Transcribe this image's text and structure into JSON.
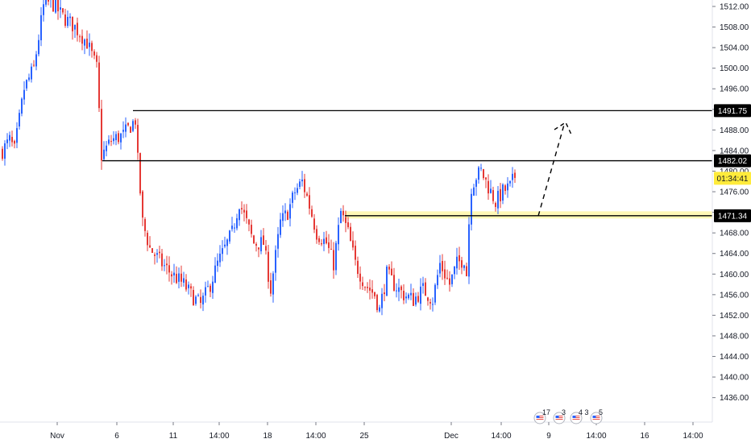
{
  "chart_data": {
    "type": "candlestick",
    "ylim": [
      1432,
      1514
    ],
    "y_ticks": [
      "1512.00",
      "1508.00",
      "1504.00",
      "1500.00",
      "1496.00",
      "1492.00",
      "1488.00",
      "1484.00",
      "1480.00",
      "1476.00",
      "1472.00",
      "1468.00",
      "1464.00",
      "1460.00",
      "1456.00",
      "1452.00",
      "1448.00",
      "1444.00",
      "1440.00",
      "1436.00"
    ],
    "x_ticks": [
      "Nov",
      "6",
      "11",
      "14:00",
      "18",
      "14:00",
      "25",
      "Dec",
      "14:00",
      "9",
      "14:00",
      "16",
      "14:00"
    ],
    "colors": {
      "up": "#2962ff",
      "down": "#e53935",
      "level": "#000000",
      "zone": "#fff59d",
      "current": "#ffeb3b"
    },
    "levels": [
      {
        "price": 1491.75,
        "label": "1491.75"
      },
      {
        "price": 1482.02,
        "label": "1482.02"
      },
      {
        "price": 1471.34,
        "label": "1471.34"
      }
    ],
    "zone": {
      "from": 1470.8,
      "to": 1472.2
    },
    "current_price": {
      "price": 1478.6,
      "label": "01:34:41"
    },
    "projection": {
      "from_price": 1471.3,
      "to_price": 1489.0,
      "style": "dashed"
    },
    "events": [
      {
        "icon": "us-flag-icon",
        "count": "17"
      },
      {
        "icon": "us-flag-icon",
        "count": "3"
      },
      {
        "icon": "us-flag-icon",
        "count": "4 3"
      },
      {
        "icon": "us-flag-icon",
        "count": "5"
      }
    ],
    "anchors": [
      [
        0,
        1484
      ],
      [
        3,
        1486
      ],
      [
        5,
        1484
      ],
      [
        9,
        1496
      ],
      [
        13,
        1500
      ],
      [
        17,
        1512
      ],
      [
        20,
        1513
      ],
      [
        25,
        1510
      ],
      [
        30,
        1508
      ],
      [
        35,
        1505
      ],
      [
        39,
        1500
      ],
      [
        41,
        1483
      ],
      [
        45,
        1486
      ],
      [
        50,
        1487
      ],
      [
        55,
        1490
      ],
      [
        56,
        1482
      ],
      [
        58,
        1470
      ],
      [
        61,
        1465
      ],
      [
        66,
        1462
      ],
      [
        70,
        1460
      ],
      [
        75,
        1458
      ],
      [
        78,
        1456
      ],
      [
        82,
        1454
      ],
      [
        86,
        1458
      ],
      [
        89,
        1462
      ],
      [
        95,
        1468
      ],
      [
        98,
        1474
      ],
      [
        101,
        1470
      ],
      [
        104,
        1466
      ],
      [
        108,
        1466
      ],
      [
        111,
        1457
      ],
      [
        115,
        1470
      ],
      [
        118,
        1472
      ],
      [
        121,
        1476
      ],
      [
        124,
        1478
      ],
      [
        126,
        1475
      ],
      [
        130,
        1468
      ],
      [
        134,
        1466
      ],
      [
        137,
        1462
      ],
      [
        140,
        1472
      ],
      [
        143,
        1468
      ],
      [
        146,
        1462
      ],
      [
        150,
        1458
      ],
      [
        154,
        1456
      ],
      [
        156,
        1453
      ],
      [
        159,
        1460
      ],
      [
        162,
        1458
      ],
      [
        166,
        1456
      ],
      [
        170,
        1455
      ],
      [
        174,
        1457
      ],
      [
        178,
        1455
      ],
      [
        181,
        1462
      ],
      [
        183,
        1460
      ],
      [
        185,
        1458
      ],
      [
        188,
        1462
      ],
      [
        191,
        1463
      ],
      [
        192,
        1460
      ],
      [
        193,
        1470
      ],
      [
        194,
        1477
      ],
      [
        196,
        1479
      ],
      [
        198,
        1480
      ],
      [
        200,
        1478
      ],
      [
        202,
        1476
      ],
      [
        204,
        1474
      ],
      [
        207,
        1476
      ],
      [
        210,
        1477
      ],
      [
        212,
        1479
      ]
    ]
  }
}
